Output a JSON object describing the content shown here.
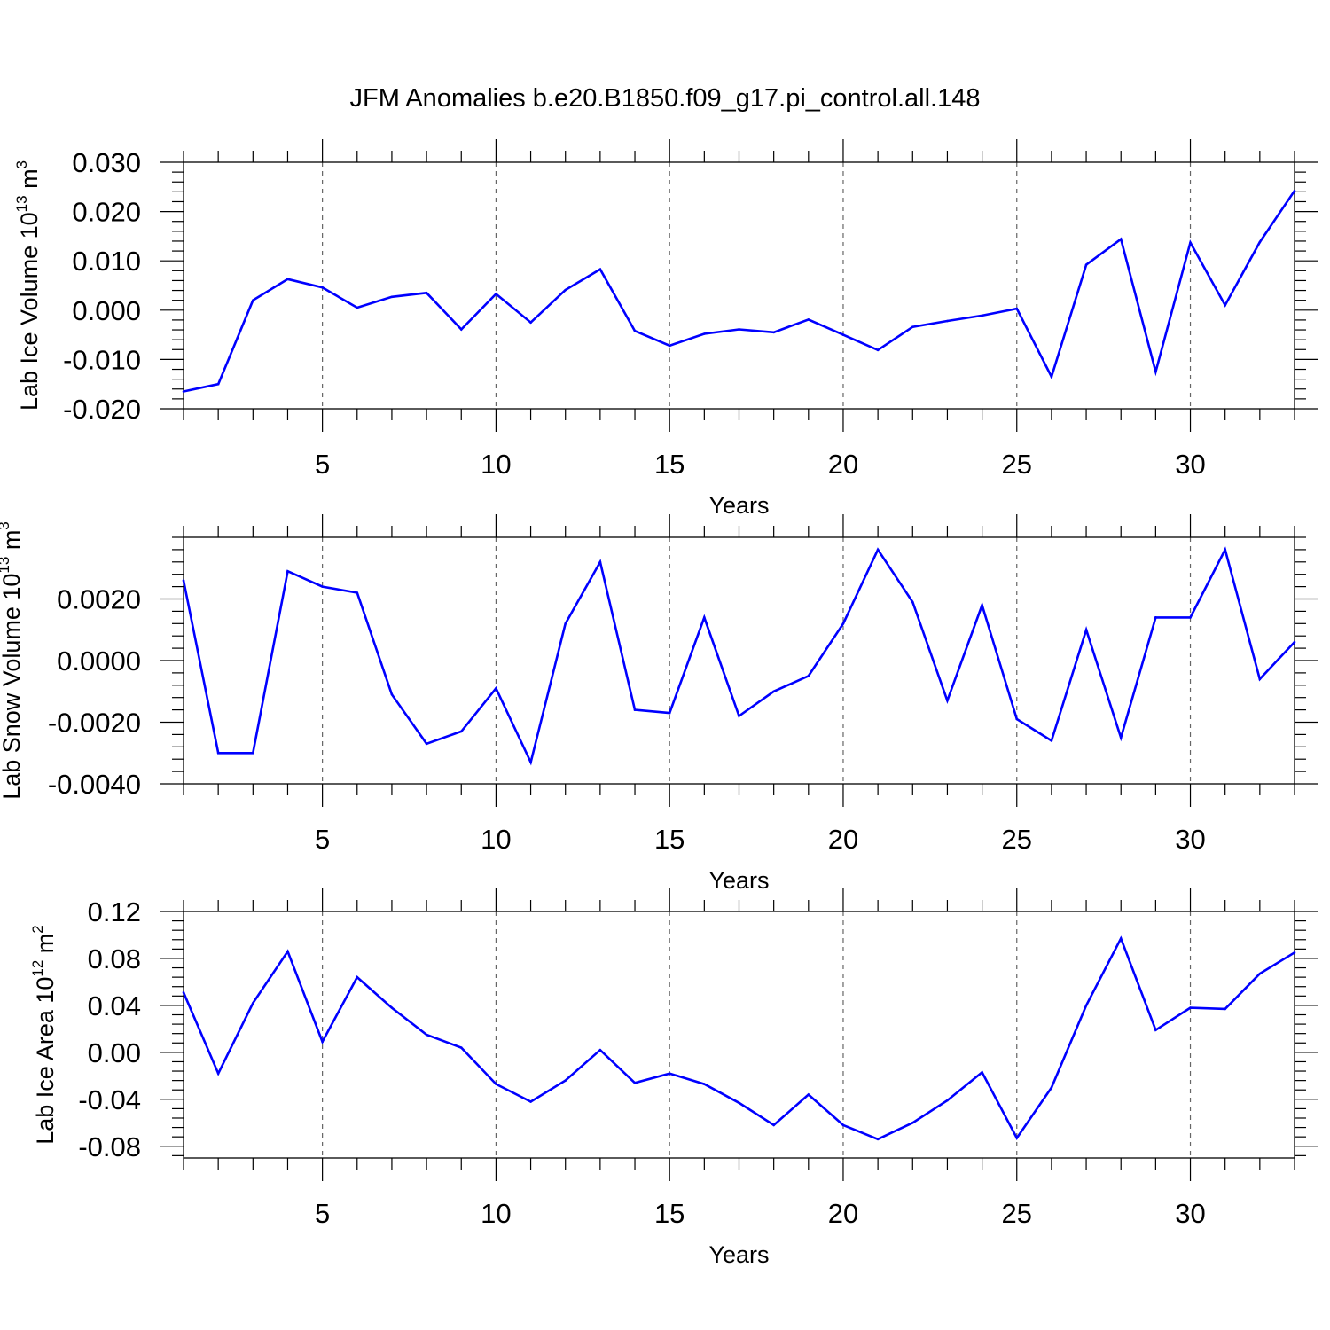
{
  "figure": {
    "title": "JFM Anomalies b.e20.B1850.f09_g17.pi_control.all.148"
  },
  "line_color": "#0000ff",
  "chart_data": [
    {
      "type": "line",
      "xlabel": "Years",
      "ylabel": {
        "main": "Lab Ice Volume 10",
        "exp": "13",
        "unit": " m",
        "unit_exp": "3"
      },
      "xlim": [
        1,
        33
      ],
      "ylim": [
        -0.02,
        0.03
      ],
      "xticks": [
        "5",
        "10",
        "15",
        "20",
        "25",
        "30"
      ],
      "yticks": [
        "0.030",
        "0.020",
        "0.010",
        "0.000",
        "-0.010",
        "-0.020"
      ],
      "ytick_values": [
        0.03,
        0.02,
        0.01,
        0.0,
        -0.01,
        -0.02
      ],
      "x": [
        1,
        2,
        3,
        4,
        5,
        6,
        7,
        8,
        9,
        10,
        11,
        12,
        13,
        14,
        15,
        16,
        17,
        18,
        19,
        20,
        21,
        22,
        23,
        24,
        25,
        26,
        27,
        28,
        29,
        30,
        31,
        32,
        33
      ],
      "values": [
        -0.0165,
        -0.015,
        0.002,
        0.0063,
        0.0046,
        0.0005,
        0.0027,
        0.0035,
        -0.0039,
        0.0033,
        -0.0025,
        0.0041,
        0.0083,
        -0.0042,
        -0.0072,
        -0.0048,
        -0.0039,
        -0.0045,
        -0.0019,
        -0.005,
        -0.0081,
        -0.0034,
        -0.0022,
        -0.0011,
        0.0003,
        -0.0135,
        0.0092,
        0.0144,
        -0.0125,
        0.0137,
        0.001,
        0.0138,
        0.0242
      ]
    },
    {
      "type": "line",
      "xlabel": "Years",
      "ylabel": {
        "main": "Lab Snow Volume 10",
        "exp": "13",
        "unit": " m",
        "unit_exp": "3"
      },
      "xlim": [
        1,
        33
      ],
      "ylim": [
        -0.004,
        0.004
      ],
      "xticks": [
        "5",
        "10",
        "15",
        "20",
        "25",
        "30"
      ],
      "yticks": [
        "0.0020",
        "0.0000",
        "-0.0020",
        "-0.0040"
      ],
      "ytick_values": [
        0.002,
        0.0,
        -0.002,
        -0.004
      ],
      "x": [
        1,
        2,
        3,
        4,
        5,
        6,
        7,
        8,
        9,
        10,
        11,
        12,
        13,
        14,
        15,
        16,
        17,
        18,
        19,
        20,
        21,
        22,
        23,
        24,
        25,
        26,
        27,
        28,
        29,
        30,
        31,
        32,
        33
      ],
      "values": [
        0.0026,
        -0.003,
        -0.003,
        0.0029,
        0.0024,
        0.0022,
        -0.0011,
        -0.0027,
        -0.0023,
        -0.0009,
        -0.0033,
        0.0012,
        0.0032,
        -0.0016,
        -0.0017,
        0.0014,
        -0.0018,
        -0.001,
        -0.0005,
        0.0012,
        0.0036,
        0.0019,
        -0.0013,
        0.0018,
        -0.0019,
        -0.0026,
        0.001,
        -0.0025,
        0.0014,
        0.0014,
        0.0036,
        -0.0006,
        0.0006
      ]
    },
    {
      "type": "line",
      "xlabel": "Years",
      "ylabel": {
        "main": "Lab Ice Area 10",
        "exp": "12",
        "unit": " m",
        "unit_exp": "2"
      },
      "xlim": [
        1,
        33
      ],
      "ylim": [
        -0.09,
        0.12
      ],
      "xticks": [
        "5",
        "10",
        "15",
        "20",
        "25",
        "30"
      ],
      "yticks": [
        "0.12",
        "0.08",
        "0.04",
        "0.00",
        "-0.04",
        "-0.08"
      ],
      "ytick_values": [
        0.12,
        0.08,
        0.04,
        0.0,
        -0.04,
        -0.08
      ],
      "x": [
        1,
        2,
        3,
        4,
        5,
        6,
        7,
        8,
        9,
        10,
        11,
        12,
        13,
        14,
        15,
        16,
        17,
        18,
        19,
        20,
        21,
        22,
        23,
        24,
        25,
        26,
        27,
        28,
        29,
        30,
        31,
        32,
        33
      ],
      "values": [
        0.051,
        -0.018,
        0.042,
        0.086,
        0.009,
        0.064,
        0.038,
        0.015,
        0.004,
        -0.027,
        -0.042,
        -0.024,
        0.002,
        -0.026,
        -0.018,
        -0.027,
        -0.043,
        -0.062,
        -0.036,
        -0.062,
        -0.074,
        -0.06,
        -0.041,
        -0.017,
        -0.073,
        -0.03,
        0.04,
        0.097,
        0.019,
        0.038,
        0.037,
        0.067,
        0.085
      ]
    }
  ]
}
